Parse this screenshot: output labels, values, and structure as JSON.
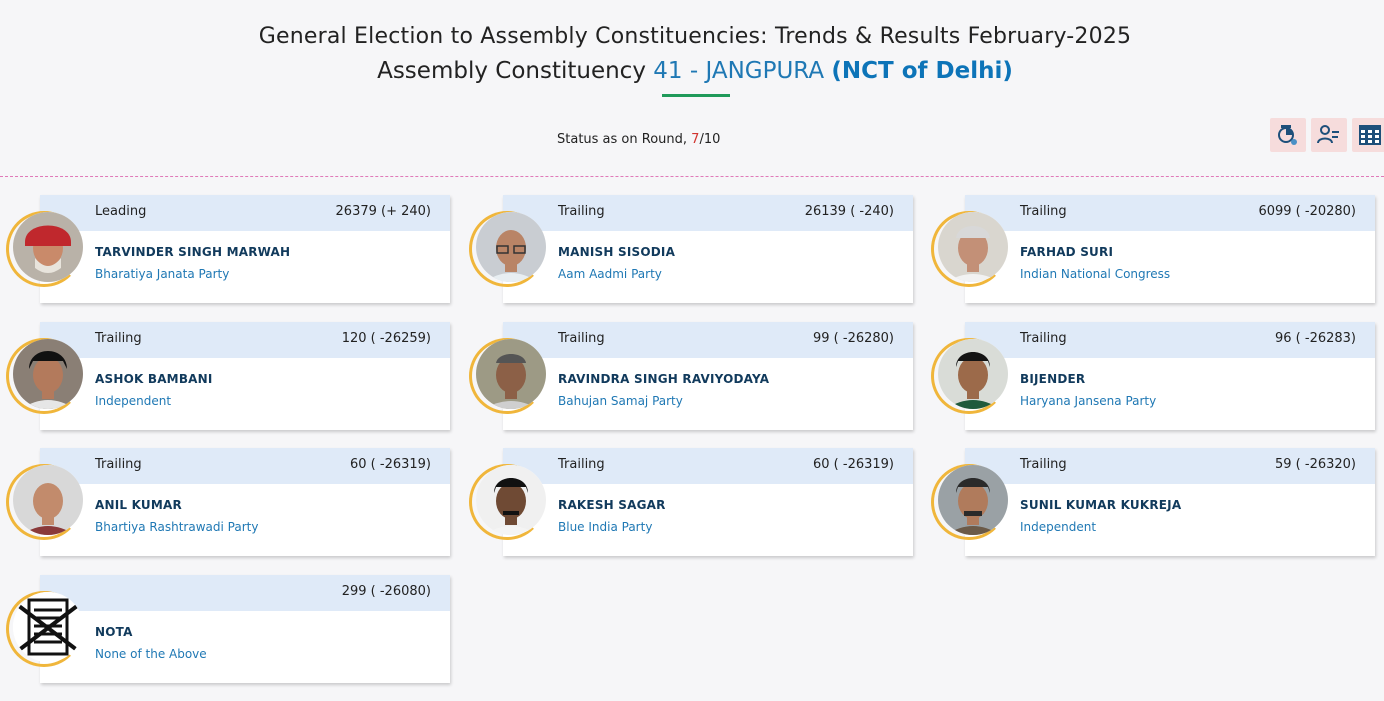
{
  "header": {
    "title": "General Election to Assembly Constituencies: Trends & Results February-2025",
    "ac_label": "Assembly Constituency",
    "ac_number": "41 - JANGPURA",
    "ac_state": "(NCT of Delhi)"
  },
  "status": {
    "label": "Status as on Round,",
    "current": "7",
    "total": "/10"
  },
  "toolbar": {
    "icons": [
      "result-chart-icon",
      "candidate-list-icon",
      "table-view-icon"
    ]
  },
  "candidates": [
    {
      "status": "Leading",
      "votes": "26379 (+ 240)",
      "name": "TARVINDER SINGH MARWAH",
      "party": "Bharatiya Janata Party",
      "photo": "turban-person"
    },
    {
      "status": "Trailing",
      "votes": "26139 ( -240)",
      "name": "MANISH SISODIA",
      "party": "Aam Aadmi Party",
      "photo": "glasses-person"
    },
    {
      "status": "Trailing",
      "votes": "6099 ( -20280)",
      "name": "FARHAD SURI",
      "party": "Indian National Congress",
      "photo": "grey-hair-person"
    },
    {
      "status": "Trailing",
      "votes": "120 ( -26259)",
      "name": "ASHOK BAMBANI",
      "party": "Independent",
      "photo": "dark-hair-person"
    },
    {
      "status": "Trailing",
      "votes": "99 ( -26280)",
      "name": "RAVINDRA SINGH RAVIYODAYA",
      "party": "Bahujan Samaj Party",
      "photo": "older-person"
    },
    {
      "status": "Trailing",
      "votes": "96 ( -26283)",
      "name": "BIJENDER",
      "party": "Haryana Jansena Party",
      "photo": "young-person"
    },
    {
      "status": "Trailing",
      "votes": "60 ( -26319)",
      "name": "ANIL KUMAR",
      "party": "Bhartiya Rashtrawadi Party",
      "photo": "bald-person"
    },
    {
      "status": "Trailing",
      "votes": "60 ( -26319)",
      "name": "RAKESH SAGAR",
      "party": "Blue India Party",
      "photo": "moustache-person"
    },
    {
      "status": "Trailing",
      "votes": "59 ( -26320)",
      "name": "SUNIL KUMAR KUKREJA",
      "party": "Independent",
      "photo": "moustache-person-2"
    },
    {
      "status": "",
      "votes": "299 ( -26080)",
      "name": "NOTA",
      "party": "None of the Above",
      "photo": "nota-icon"
    }
  ],
  "colors": {
    "accent_blue": "#1f78b4",
    "card_header": "#dfeaf8",
    "ring": "#f0b63b",
    "round_current": "#d1342f",
    "underline": "#1f9a5a"
  }
}
